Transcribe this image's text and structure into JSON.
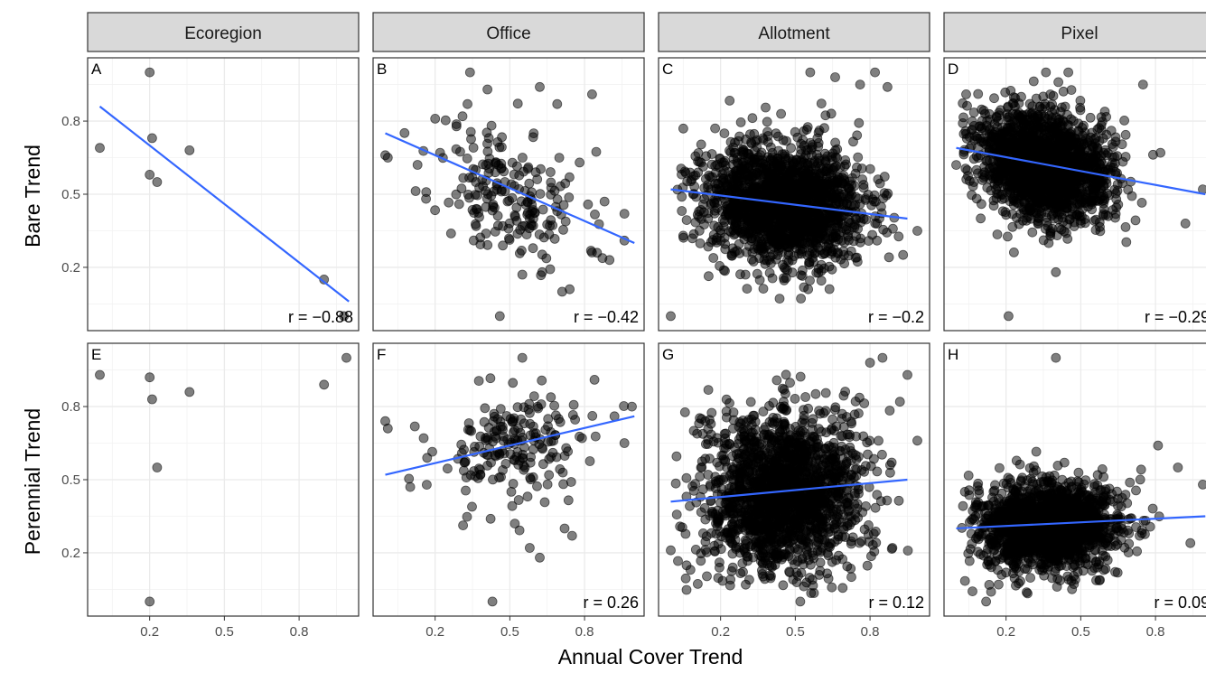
{
  "chart_data": {
    "type": "scatter",
    "facets": {
      "columns": [
        "Ecoregion",
        "Office",
        "Allotment",
        "Pixel"
      ],
      "rows": [
        "Bare Trend",
        "Perennial Trend"
      ]
    },
    "xlabel": "Annual Cover Trend",
    "x_ticks": [
      0.2,
      0.5,
      0.8
    ],
    "y_ticks": [
      0.2,
      0.5,
      0.8
    ],
    "xlim": [
      -0.02,
      1.01
    ],
    "ylim": [
      -0.03,
      1.03
    ],
    "grid": true,
    "colors": {
      "points": "#000000",
      "fit_line": "#3366ff",
      "strip_bg": "#d9d9d9",
      "grid": "#ebebeb",
      "border": "#333333"
    },
    "panels": [
      {
        "tag": "A",
        "row": 0,
        "col": 0,
        "r_text": "r = −0.88",
        "fit": {
          "x": [
            0.0,
            1.0
          ],
          "y": [
            0.86,
            0.06
          ]
        },
        "points": [
          [
            0.0,
            0.69
          ],
          [
            0.2,
            1.0
          ],
          [
            0.21,
            0.73
          ],
          [
            0.2,
            0.58
          ],
          [
            0.23,
            0.55
          ],
          [
            0.36,
            0.68
          ],
          [
            0.9,
            0.15
          ],
          [
            0.98,
            0.0
          ]
        ],
        "cloud": null
      },
      {
        "tag": "B",
        "row": 0,
        "col": 1,
        "r_text": "r = −0.42",
        "fit": {
          "x": [
            0.0,
            1.0
          ],
          "y": [
            0.75,
            0.3
          ]
        },
        "points": [
          [
            0.0,
            0.66
          ],
          [
            0.01,
            0.65
          ],
          [
            0.2,
            0.81
          ],
          [
            0.22,
            0.67
          ],
          [
            0.31,
            0.82
          ],
          [
            0.33,
            0.87
          ],
          [
            0.34,
            1.0
          ],
          [
            0.41,
            0.93
          ],
          [
            0.48,
            0.55
          ],
          [
            0.56,
            0.37
          ],
          [
            0.62,
            0.94
          ],
          [
            0.69,
            0.87
          ],
          [
            0.78,
            0.63
          ],
          [
            0.83,
            0.91
          ],
          [
            0.88,
            0.47
          ],
          [
            0.96,
            0.42
          ],
          [
            0.96,
            0.31
          ],
          [
            0.46,
            0.0
          ],
          [
            0.55,
            0.17
          ],
          [
            0.63,
            0.18
          ],
          [
            0.71,
            0.1
          ],
          [
            0.74,
            0.11
          ],
          [
            0.85,
            0.26
          ],
          [
            0.9,
            0.23
          ]
        ],
        "cloud": {
          "n": 190,
          "cx": 0.5,
          "cy": 0.5,
          "sx": 0.15,
          "sy": 0.14,
          "slope": -0.3,
          "seed": 11
        }
      },
      {
        "tag": "C",
        "row": 0,
        "col": 2,
        "r_text": "r = −0.2",
        "fit": {
          "x": [
            0.0,
            0.95
          ],
          "y": [
            0.52,
            0.4
          ]
        },
        "points": [
          [
            0.0,
            0.0
          ],
          [
            0.56,
            1.0
          ],
          [
            0.82,
            1.0
          ],
          [
            0.66,
            0.98
          ],
          [
            0.76,
            0.95
          ],
          [
            0.87,
            0.94
          ],
          [
            0.99,
            0.35
          ],
          [
            0.05,
            0.33
          ],
          [
            0.3,
            0.17
          ]
        ],
        "cloud": {
          "n": 1800,
          "cx": 0.45,
          "cy": 0.46,
          "sx": 0.16,
          "sy": 0.12,
          "slope": -0.1,
          "seed": 23
        }
      },
      {
        "tag": "D",
        "row": 0,
        "col": 3,
        "r_text": "r = −0.29",
        "fit": {
          "x": [
            0.0,
            1.0
          ],
          "y": [
            0.69,
            0.5
          ]
        },
        "points": [
          [
            0.0,
            0.62
          ],
          [
            0.04,
            0.91
          ],
          [
            0.36,
            1.0
          ],
          [
            0.41,
            0.96
          ],
          [
            0.45,
            1.0
          ],
          [
            0.75,
            0.95
          ],
          [
            0.82,
            0.67
          ],
          [
            0.92,
            0.38
          ],
          [
            0.99,
            0.52
          ],
          [
            0.21,
            0.0
          ],
          [
            0.4,
            0.18
          ]
        ],
        "cloud": {
          "n": 1800,
          "cx": 0.35,
          "cy": 0.62,
          "sx": 0.13,
          "sy": 0.11,
          "slope": -0.2,
          "seed": 37
        }
      },
      {
        "tag": "E",
        "row": 1,
        "col": 0,
        "r_text": "",
        "fit": null,
        "points": [
          [
            0.0,
            0.93
          ],
          [
            0.2,
            0.92
          ],
          [
            0.21,
            0.83
          ],
          [
            0.36,
            0.86
          ],
          [
            0.23,
            0.55
          ],
          [
            0.2,
            0.0
          ],
          [
            0.9,
            0.89
          ],
          [
            0.99,
            1.0
          ]
        ],
        "cloud": null
      },
      {
        "tag": "F",
        "row": 1,
        "col": 1,
        "r_text": "r = 0.26",
        "fit": {
          "x": [
            0.0,
            1.0
          ],
          "y": [
            0.52,
            0.76
          ]
        },
        "points": [
          [
            0.0,
            0.74
          ],
          [
            0.01,
            0.71
          ],
          [
            0.43,
            0.0
          ],
          [
            0.52,
            0.32
          ],
          [
            0.58,
            0.22
          ],
          [
            0.62,
            0.18
          ],
          [
            0.72,
            0.3
          ],
          [
            0.75,
            0.27
          ],
          [
            0.84,
            0.91
          ],
          [
            0.92,
            0.76
          ],
          [
            0.99,
            0.8
          ],
          [
            0.96,
            0.65
          ],
          [
            0.55,
            1.0
          ],
          [
            0.1,
            0.47
          ]
        ],
        "cloud": {
          "n": 190,
          "cx": 0.52,
          "cy": 0.63,
          "sx": 0.16,
          "sy": 0.12,
          "slope": 0.15,
          "seed": 53
        }
      },
      {
        "tag": "G",
        "row": 1,
        "col": 2,
        "r_text": "r = 0.12",
        "fit": {
          "x": [
            0.0,
            0.95
          ],
          "y": [
            0.41,
            0.5
          ]
        },
        "points": [
          [
            0.0,
            0.21
          ],
          [
            0.8,
            0.98
          ],
          [
            0.85,
            1.0
          ],
          [
            0.95,
            0.93
          ],
          [
            0.92,
            0.82
          ],
          [
            0.89,
            0.22
          ],
          [
            0.99,
            0.66
          ],
          [
            0.52,
            0.0
          ]
        ],
        "cloud": {
          "n": 1800,
          "cx": 0.45,
          "cy": 0.44,
          "sx": 0.16,
          "sy": 0.17,
          "slope": 0.05,
          "seed": 71
        }
      },
      {
        "tag": "H",
        "row": 1,
        "col": 3,
        "r_text": "r = 0.09",
        "fit": {
          "x": [
            0.0,
            1.0
          ],
          "y": [
            0.3,
            0.35
          ]
        },
        "points": [
          [
            0.4,
            1.0
          ],
          [
            0.81,
            0.64
          ],
          [
            0.89,
            0.55
          ],
          [
            0.94,
            0.24
          ],
          [
            0.99,
            0.48
          ],
          [
            0.12,
            0.0
          ],
          [
            0.14,
            0.04
          ]
        ],
        "cloud": {
          "n": 1700,
          "cx": 0.37,
          "cy": 0.31,
          "sx": 0.14,
          "sy": 0.09,
          "slope": 0.03,
          "seed": 89
        }
      }
    ]
  },
  "facet_labels": {
    "col0": "Ecoregion",
    "col1": "Office",
    "col2": "Allotment",
    "col3": "Pixel"
  },
  "row_labels": {
    "row0": "Bare Trend",
    "row1": "Perennial Trend"
  },
  "axis": {
    "xlabel": "Annual Cover Trend"
  }
}
